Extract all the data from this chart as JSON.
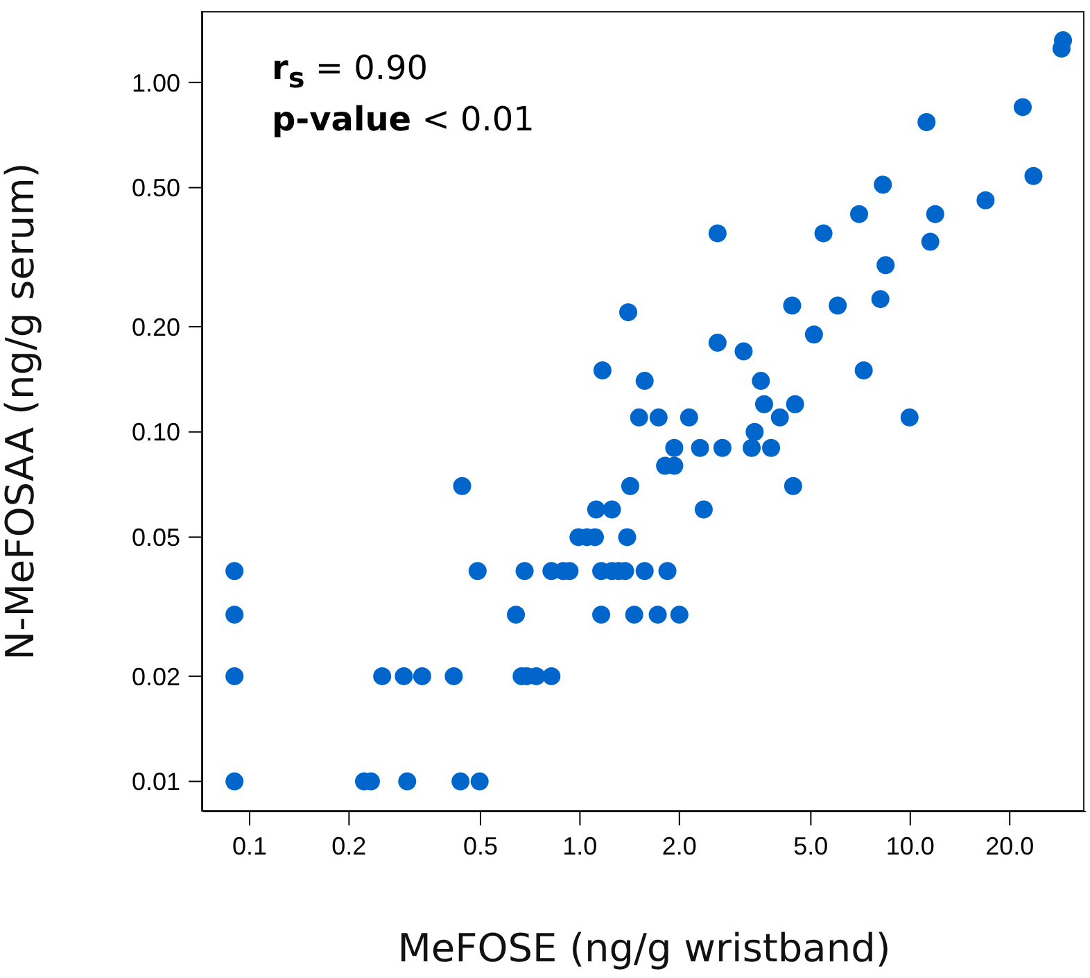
{
  "chart_data": {
    "type": "scatter",
    "xlabel": "MeFOSE (ng/g wristband)",
    "ylabel": "N-MeFOSAA (ng/g serum)",
    "annotations": [
      "r$_{s}$ = 0.90",
      "p-value < 0.01"
    ],
    "log": "xy",
    "grid": false,
    "legend": false,
    "marker": "circle",
    "xlim": [
      0.072,
      34
    ],
    "ylim": [
      0.0082,
      1.6
    ],
    "xticks": [
      0.1,
      0.2,
      0.5,
      {
        "value": 1,
        "label": "1.0"
      },
      {
        "value": 2,
        "label": "2.0"
      },
      {
        "value": 5,
        "label": "5.0"
      },
      {
        "value": 10,
        "label": "10.0"
      },
      {
        "value": 20,
        "label": "20.0"
      }
    ],
    "yticks": [
      0.01,
      0.02,
      0.05,
      {
        "value": 0.1,
        "label": "0.10"
      },
      {
        "value": 0.2,
        "label": "0.20"
      },
      {
        "value": 0.5,
        "label": "0.50"
      },
      {
        "value": 1,
        "label": "1.00"
      }
    ],
    "series": [
      {
        "color": "#0066cc",
        "x": [
          0.09,
          0.09,
          0.09,
          0.09,
          0.222,
          0.233,
          0.3,
          0.435,
          0.497,
          0.252,
          0.293,
          0.333,
          0.415,
          0.666,
          0.69,
          0.738,
          0.82,
          0.64,
          1.16,
          1.46,
          1.72,
          2.0,
          0.49,
          0.68,
          0.82,
          0.89,
          0.93,
          1.16,
          1.25,
          1.31,
          1.37,
          1.57,
          1.84,
          0.99,
          1.05,
          1.11,
          1.39,
          1.12,
          1.25,
          2.37,
          0.44,
          1.42,
          4.42,
          1.81,
          1.93,
          1.93,
          2.31,
          2.7,
          3.31,
          3.79,
          3.38,
          1.51,
          1.73,
          2.14,
          4.03,
          9.95,
          3.61,
          4.48,
          1.57,
          3.53,
          1.17,
          7.23,
          3.13,
          2.61,
          5.11,
          1.4,
          4.39,
          6.03,
          8.12,
          8.42,
          11.5,
          2.61,
          5.46,
          7.0,
          11.9,
          16.9,
          8.26,
          23.6,
          11.2,
          21.9,
          28.7,
          29.0
        ],
        "values": [
          0.01,
          0.02,
          0.03,
          0.04,
          0.01,
          0.01,
          0.01,
          0.01,
          0.01,
          0.02,
          0.02,
          0.02,
          0.02,
          0.02,
          0.02,
          0.02,
          0.02,
          0.03,
          0.03,
          0.03,
          0.03,
          0.03,
          0.04,
          0.04,
          0.04,
          0.04,
          0.04,
          0.04,
          0.04,
          0.04,
          0.04,
          0.04,
          0.04,
          0.05,
          0.05,
          0.05,
          0.05,
          0.06,
          0.06,
          0.06,
          0.07,
          0.07,
          0.07,
          0.08,
          0.08,
          0.09,
          0.09,
          0.09,
          0.09,
          0.09,
          0.1,
          0.11,
          0.11,
          0.11,
          0.11,
          0.11,
          0.12,
          0.12,
          0.14,
          0.14,
          0.15,
          0.15,
          0.17,
          0.18,
          0.19,
          0.22,
          0.23,
          0.23,
          0.24,
          0.3,
          0.35,
          0.37,
          0.37,
          0.42,
          0.42,
          0.46,
          0.51,
          0.54,
          0.77,
          0.85,
          1.25,
          1.32
        ]
      }
    ]
  }
}
